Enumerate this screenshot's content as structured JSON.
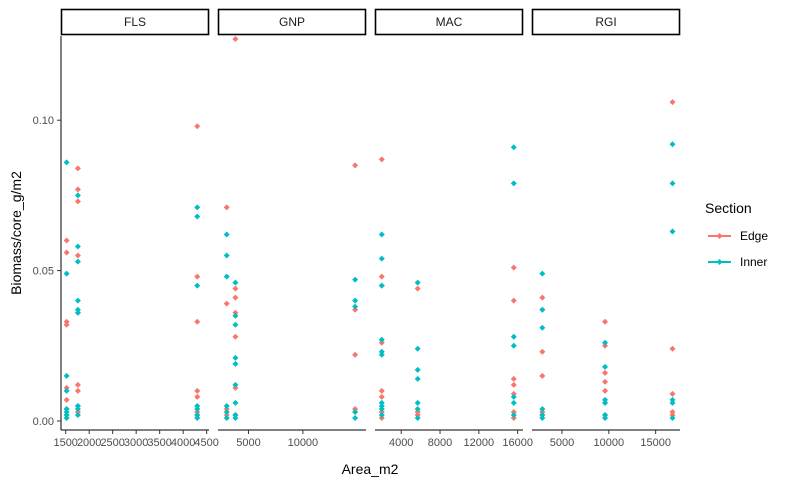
{
  "chart_data": {
    "type": "scatter",
    "xlabel": "Area_m2",
    "ylabel": "Biomass/core_g/m2",
    "ylim": [
      -0.003,
      0.128
    ],
    "yticks": [
      0.0,
      0.05,
      0.1
    ],
    "ytick_labels": [
      "0.00",
      "0.05",
      "0.10"
    ],
    "grid": false,
    "legend": {
      "title": "Section",
      "position": "right",
      "entries": [
        {
          "name": "Edge",
          "color": "#F8766D"
        },
        {
          "name": "Inner",
          "color": "#00BFC4"
        }
      ]
    },
    "facets": [
      {
        "label": "FLS",
        "xlim": [
          1400,
          4550
        ],
        "xticks": [
          1500,
          2000,
          2500,
          3000,
          3500,
          4000,
          4500
        ],
        "xtick_labels": [
          "1500",
          "2000",
          "2500",
          "3000",
          "3500",
          "4000",
          "4500"
        ],
        "series": [
          {
            "name": "Edge",
            "points": [
              [
                1520,
                0.06
              ],
              [
                1520,
                0.056
              ],
              [
                1520,
                0.033
              ],
              [
                1520,
                0.032
              ],
              [
                1520,
                0.011
              ],
              [
                1520,
                0.007
              ],
              [
                1520,
                0.004
              ],
              [
                1520,
                0.002
              ],
              [
                1760,
                0.084
              ],
              [
                1760,
                0.077
              ],
              [
                1760,
                0.073
              ],
              [
                1760,
                0.055
              ],
              [
                1760,
                0.036
              ],
              [
                1760,
                0.012
              ],
              [
                1760,
                0.01
              ],
              [
                1760,
                0.005
              ],
              [
                1760,
                0.003
              ],
              [
                4300,
                0.098
              ],
              [
                4300,
                0.048
              ],
              [
                4300,
                0.033
              ],
              [
                4300,
                0.01
              ],
              [
                4300,
                0.008
              ],
              [
                4300,
                0.003
              ],
              [
                4300,
                0.002
              ]
            ]
          },
          {
            "name": "Inner",
            "points": [
              [
                1520,
                0.086
              ],
              [
                1520,
                0.049
              ],
              [
                1520,
                0.015
              ],
              [
                1520,
                0.01
              ],
              [
                1520,
                0.004
              ],
              [
                1520,
                0.003
              ],
              [
                1520,
                0.002
              ],
              [
                1520,
                0.001
              ],
              [
                1760,
                0.075
              ],
              [
                1760,
                0.058
              ],
              [
                1760,
                0.053
              ],
              [
                1760,
                0.04
              ],
              [
                1760,
                0.037
              ],
              [
                1760,
                0.036
              ],
              [
                1760,
                0.005
              ],
              [
                1760,
                0.004
              ],
              [
                1760,
                0.002
              ],
              [
                4300,
                0.071
              ],
              [
                4300,
                0.068
              ],
              [
                4300,
                0.045
              ],
              [
                4300,
                0.005
              ],
              [
                4300,
                0.004
              ],
              [
                4300,
                0.002
              ],
              [
                4300,
                0.001
              ]
            ]
          }
        ]
      },
      {
        "label": "GNP",
        "xlim": [
          2200,
          15800
        ],
        "xticks": [
          5000,
          10000
        ],
        "xtick_labels": [
          "5000",
          "10000"
        ],
        "series": [
          {
            "name": "Edge",
            "points": [
              [
                3000,
                0.071
              ],
              [
                3000,
                0.039
              ],
              [
                3000,
                0.004
              ],
              [
                3000,
                0.002
              ],
              [
                3800,
                0.127
              ],
              [
                3800,
                0.044
              ],
              [
                3800,
                0.041
              ],
              [
                3800,
                0.036
              ],
              [
                3800,
                0.028
              ],
              [
                3800,
                0.011
              ],
              [
                3800,
                0.002
              ],
              [
                14800,
                0.085
              ],
              [
                14800,
                0.037
              ],
              [
                14800,
                0.022
              ],
              [
                14800,
                0.004
              ],
              [
                14800,
                0.003
              ]
            ]
          },
          {
            "name": "Inner",
            "points": [
              [
                3000,
                0.062
              ],
              [
                3000,
                0.055
              ],
              [
                3000,
                0.048
              ],
              [
                3000,
                0.005
              ],
              [
                3000,
                0.003
              ],
              [
                3000,
                0.001
              ],
              [
                3800,
                0.046
              ],
              [
                3800,
                0.035
              ],
              [
                3800,
                0.032
              ],
              [
                3800,
                0.021
              ],
              [
                3800,
                0.019
              ],
              [
                3800,
                0.012
              ],
              [
                3800,
                0.006
              ],
              [
                3800,
                0.002
              ],
              [
                3800,
                0.001
              ],
              [
                14800,
                0.047
              ],
              [
                14800,
                0.04
              ],
              [
                14800,
                0.038
              ],
              [
                14800,
                0.003
              ],
              [
                14800,
                0.001
              ]
            ]
          }
        ]
      },
      {
        "label": "MAC",
        "xlim": [
          1300,
          16550
        ],
        "xticks": [
          4000,
          8000,
          12000,
          16000
        ],
        "xtick_labels": [
          "4000",
          "8000",
          "12000",
          "16000"
        ],
        "series": [
          {
            "name": "Edge",
            "points": [
              [
                2000,
                0.087
              ],
              [
                2000,
                0.048
              ],
              [
                2000,
                0.045
              ],
              [
                2000,
                0.026
              ],
              [
                2000,
                0.01
              ],
              [
                2000,
                0.008
              ],
              [
                2000,
                0.003
              ],
              [
                2000,
                0.001
              ],
              [
                5700,
                0.044
              ],
              [
                5700,
                0.003
              ],
              [
                5700,
                0.002
              ],
              [
                15600,
                0.051
              ],
              [
                15600,
                0.04
              ],
              [
                15600,
                0.014
              ],
              [
                15600,
                0.012
              ],
              [
                15600,
                0.009
              ],
              [
                15600,
                0.003
              ],
              [
                15600,
                0.001
              ]
            ]
          },
          {
            "name": "Inner",
            "points": [
              [
                2000,
                0.062
              ],
              [
                2000,
                0.054
              ],
              [
                2000,
                0.045
              ],
              [
                2000,
                0.027
              ],
              [
                2000,
                0.023
              ],
              [
                2000,
                0.022
              ],
              [
                2000,
                0.006
              ],
              [
                2000,
                0.005
              ],
              [
                2000,
                0.004
              ],
              [
                2000,
                0.002
              ],
              [
                5700,
                0.046
              ],
              [
                5700,
                0.024
              ],
              [
                5700,
                0.017
              ],
              [
                5700,
                0.014
              ],
              [
                5700,
                0.006
              ],
              [
                5700,
                0.004
              ],
              [
                5700,
                0.001
              ],
              [
                15600,
                0.091
              ],
              [
                15600,
                0.079
              ],
              [
                15600,
                0.028
              ],
              [
                15600,
                0.025
              ],
              [
                15600,
                0.008
              ],
              [
                15600,
                0.006
              ],
              [
                15600,
                0.002
              ]
            ]
          }
        ]
      },
      {
        "label": "RGI",
        "xlim": [
          1800,
          17600
        ],
        "xticks": [
          5000,
          10000,
          15000
        ],
        "xtick_labels": [
          "5000",
          "10000",
          "15000"
        ],
        "series": [
          {
            "name": "Edge",
            "points": [
              [
                2900,
                0.041
              ],
              [
                2900,
                0.037
              ],
              [
                2900,
                0.023
              ],
              [
                2900,
                0.015
              ],
              [
                2900,
                0.003
              ],
              [
                2900,
                0.002
              ],
              [
                9600,
                0.033
              ],
              [
                9600,
                0.025
              ],
              [
                9600,
                0.016
              ],
              [
                9600,
                0.013
              ],
              [
                9600,
                0.01
              ],
              [
                9600,
                0.006
              ],
              [
                9600,
                0.002
              ],
              [
                16800,
                0.106
              ],
              [
                16800,
                0.024
              ],
              [
                16800,
                0.009
              ],
              [
                16800,
                0.003
              ],
              [
                16800,
                0.002
              ]
            ]
          },
          {
            "name": "Inner",
            "points": [
              [
                2900,
                0.049
              ],
              [
                2900,
                0.037
              ],
              [
                2900,
                0.031
              ],
              [
                2900,
                0.004
              ],
              [
                2900,
                0.002
              ],
              [
                2900,
                0.001
              ],
              [
                9600,
                0.026
              ],
              [
                9600,
                0.018
              ],
              [
                9600,
                0.007
              ],
              [
                9600,
                0.006
              ],
              [
                9600,
                0.002
              ],
              [
                9600,
                0.001
              ],
              [
                16800,
                0.092
              ],
              [
                16800,
                0.079
              ],
              [
                16800,
                0.063
              ],
              [
                16800,
                0.007
              ],
              [
                16800,
                0.006
              ],
              [
                16800,
                0.001
              ]
            ]
          }
        ]
      }
    ]
  }
}
